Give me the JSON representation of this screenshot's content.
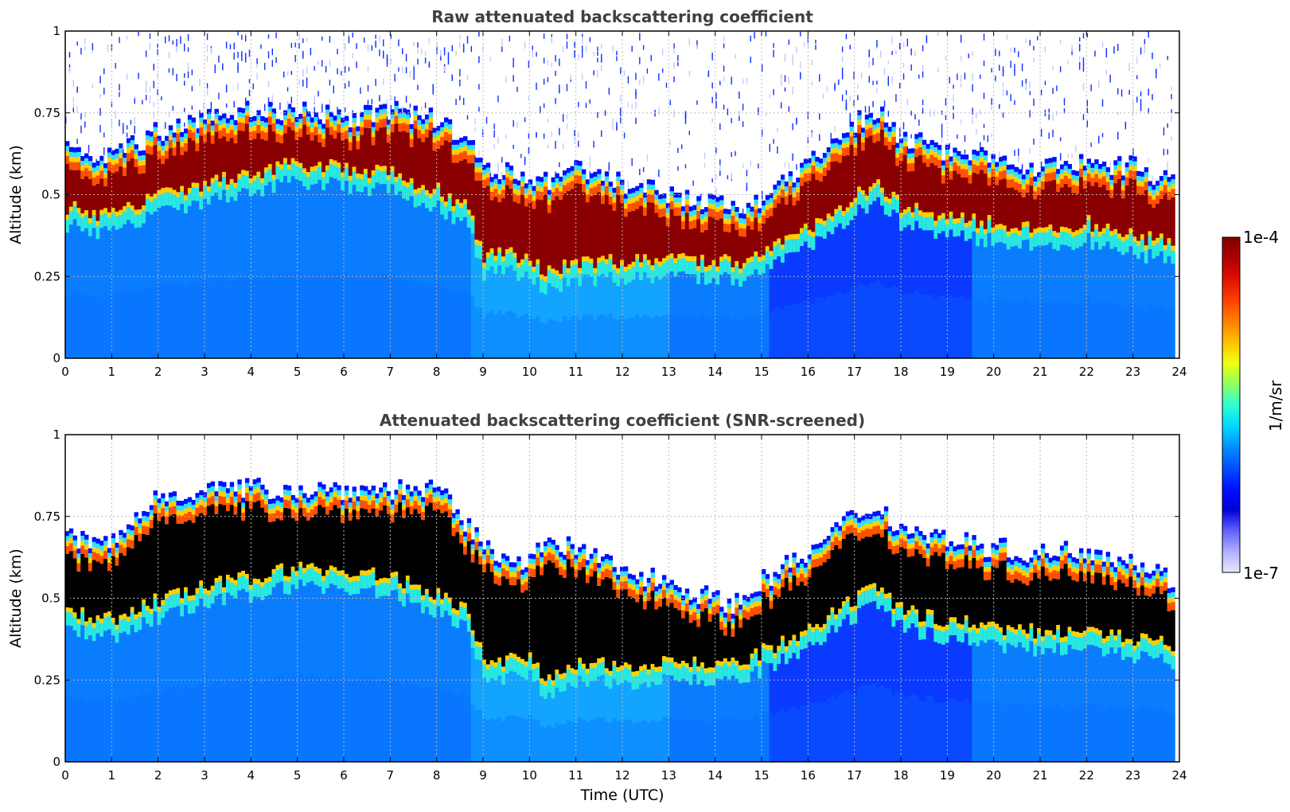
{
  "figure": {
    "colorbar": {
      "max_label": "1e-4",
      "min_label": "1e-7",
      "unit_label": "1/m/sr",
      "colormap": [
        "#7f0000",
        "#b00000",
        "#e01000",
        "#ff4000",
        "#ff8000",
        "#ffc000",
        "#f0ff10",
        "#90ff60",
        "#30ffd0",
        "#00d8ff",
        "#0090ff",
        "#0050ff",
        "#0010ff",
        "#0000d8",
        "#6060ff",
        "#b0b0ff",
        "#e8e8ff"
      ]
    },
    "xlabel": "Time (UTC)"
  },
  "chart_data": [
    {
      "type": "heatmap",
      "title": "Raw attenuated backscattering coefficient",
      "xlabel": "",
      "ylabel": "Altitude (km)",
      "xlim": [
        0,
        24
      ],
      "ylim": [
        0,
        1
      ],
      "x_ticks": [
        "0",
        "1",
        "2",
        "3",
        "4",
        "5",
        "6",
        "7",
        "8",
        "9",
        "10",
        "11",
        "12",
        "13",
        "14",
        "15",
        "16",
        "17",
        "18",
        "19",
        "20",
        "21",
        "22",
        "23",
        "24"
      ],
      "y_ticks": [
        "0",
        "0.25",
        "0.5",
        "0.75",
        "1"
      ],
      "grid": true,
      "color_scale": "log",
      "value_range": [
        1e-07,
        0.0001
      ],
      "cloud_layer": {
        "time": [
          0,
          1,
          2,
          3,
          4,
          5,
          6,
          7,
          8,
          8.7,
          9,
          10,
          10.3,
          11,
          12,
          13,
          14,
          14.5,
          15,
          16,
          17,
          17.5,
          18,
          19,
          20,
          21,
          22,
          23,
          23.9
        ],
        "base_km": [
          0.45,
          0.42,
          0.48,
          0.52,
          0.55,
          0.58,
          0.57,
          0.55,
          0.5,
          0.45,
          0.3,
          0.3,
          0.25,
          0.28,
          0.28,
          0.3,
          0.28,
          0.28,
          0.32,
          0.38,
          0.48,
          0.52,
          0.45,
          0.42,
          0.4,
          0.38,
          0.4,
          0.36,
          0.34
        ],
        "top_km": [
          0.6,
          0.58,
          0.66,
          0.7,
          0.72,
          0.72,
          0.7,
          0.72,
          0.7,
          0.62,
          0.55,
          0.52,
          0.5,
          0.55,
          0.5,
          0.47,
          0.44,
          0.42,
          0.46,
          0.55,
          0.68,
          0.72,
          0.64,
          0.6,
          0.57,
          0.55,
          0.57,
          0.55,
          0.5
        ]
      },
      "noise_above_cloud": true
    },
    {
      "type": "heatmap",
      "title": "Attenuated backscattering coefficient (SNR-screened)",
      "xlabel": "Time (UTC)",
      "ylabel": "Altitude (km)",
      "xlim": [
        0,
        24
      ],
      "ylim": [
        0,
        1
      ],
      "x_ticks": [
        "0",
        "1",
        "2",
        "3",
        "4",
        "5",
        "6",
        "7",
        "8",
        "9",
        "10",
        "11",
        "12",
        "13",
        "14",
        "15",
        "16",
        "17",
        "18",
        "19",
        "20",
        "21",
        "22",
        "23",
        "24"
      ],
      "y_ticks": [
        "0",
        "0.25",
        "0.5",
        "0.75",
        "1"
      ],
      "grid": true,
      "color_scale": "log",
      "value_range": [
        1e-07,
        0.0001
      ],
      "cloud_layer": {
        "time": [
          0,
          1,
          2,
          3,
          4,
          5,
          6,
          7,
          8,
          8.7,
          9,
          10,
          10.3,
          11,
          12,
          13,
          14,
          14.5,
          15,
          16,
          17,
          17.5,
          18,
          19,
          20,
          21,
          22,
          23,
          23.9
        ],
        "base_km": [
          0.45,
          0.42,
          0.48,
          0.52,
          0.55,
          0.58,
          0.57,
          0.55,
          0.5,
          0.45,
          0.3,
          0.3,
          0.25,
          0.28,
          0.28,
          0.3,
          0.28,
          0.28,
          0.32,
          0.38,
          0.48,
          0.52,
          0.45,
          0.42,
          0.4,
          0.38,
          0.4,
          0.36,
          0.34
        ],
        "top_km": [
          0.65,
          0.63,
          0.78,
          0.8,
          0.8,
          0.8,
          0.8,
          0.8,
          0.8,
          0.68,
          0.62,
          0.58,
          0.62,
          0.62,
          0.55,
          0.52,
          0.46,
          0.45,
          0.52,
          0.6,
          0.72,
          0.75,
          0.68,
          0.65,
          0.62,
          0.6,
          0.62,
          0.58,
          0.52
        ]
      },
      "noise_above_cloud": false
    }
  ]
}
